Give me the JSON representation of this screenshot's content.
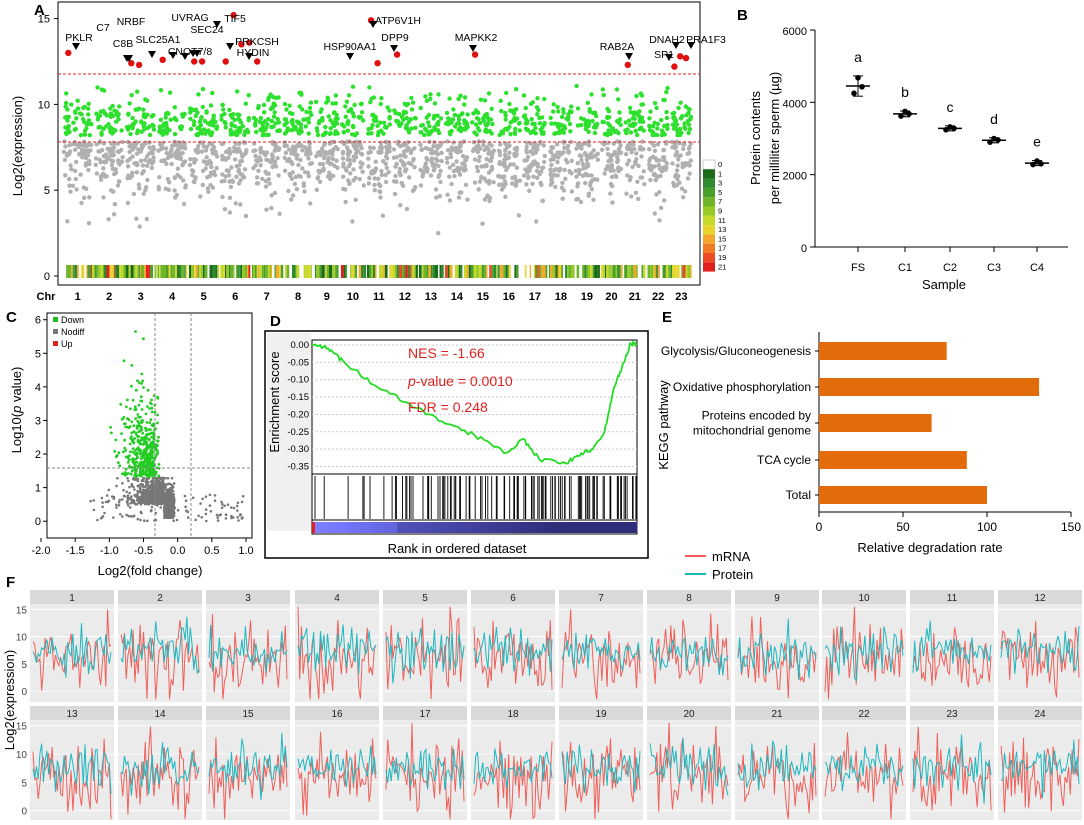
{
  "panels": {
    "A": {
      "letter": "A"
    },
    "B": {
      "letter": "B"
    },
    "C": {
      "letter": "C"
    },
    "D": {
      "letter": "D"
    },
    "E": {
      "letter": "E"
    },
    "F": {
      "letter": "F"
    }
  },
  "chart_data": [
    {
      "id": "A",
      "type": "scatter",
      "title": "",
      "ylabel": "Log2(expression)",
      "xlabel": "Chr",
      "ylim": [
        0,
        15.5
      ],
      "yticks": [
        0,
        5,
        10,
        15
      ],
      "categories": [
        "1",
        "2",
        "3",
        "4",
        "5",
        "6",
        "7",
        "8",
        "9",
        "10",
        "11",
        "12",
        "13",
        "14",
        "15",
        "16",
        "17",
        "18",
        "19",
        "20",
        "21",
        "22",
        "23"
      ],
      "thresholds": [
        12,
        8
      ],
      "gene_labels": [
        "PKLR",
        "C7",
        "C8B",
        "NRBF",
        "SLC25A1",
        "UVRAG",
        "SEC24",
        "TIF5",
        "CNOT7/8",
        "PRKCSH",
        "HYDIN",
        "ATP6V1H",
        "HSP90AA1",
        "DPP9",
        "MAPKK2",
        "RAB2A",
        "DNAH2",
        "SP1",
        "PRA1F3"
      ],
      "highlight_points": [
        {
          "gene": "PKLR",
          "chr": 1,
          "y": 13
        },
        {
          "gene": "C7",
          "chr": 3,
          "y": 12.4
        },
        {
          "gene": "C8B",
          "chr": 3,
          "y": 12.3
        },
        {
          "gene": "SLC25A1",
          "chr": 4,
          "y": 12.6
        },
        {
          "gene": "CNOT7/8",
          "chr": 5,
          "y": 12.5
        },
        {
          "gene": "NRBF",
          "chr": 5,
          "y": 12.5
        },
        {
          "gene": "UVRAG",
          "chr": 6,
          "y": 12.5
        },
        {
          "gene": "SEC24",
          "chr": 6,
          "y": 15.2
        },
        {
          "gene": "TIF5",
          "chr": 6,
          "y": 13.5
        },
        {
          "gene": "PRKCSH",
          "chr": 6,
          "y": 13.6
        },
        {
          "gene": "HYDIN",
          "chr": 7,
          "y": 12.5
        },
        {
          "gene": "ATP6V1H",
          "chr": 11,
          "y": 14.9
        },
        {
          "gene": "HSP90AA1",
          "chr": 11,
          "y": 12.4
        },
        {
          "gene": "DPP9",
          "chr": 12,
          "y": 12.9
        },
        {
          "gene": "MAPKK2",
          "chr": 15,
          "y": 12.9
        },
        {
          "gene": "RAB2A",
          "chr": 21,
          "y": 12.3
        },
        {
          "gene": "SP1",
          "chr": 23,
          "y": 12.2
        },
        {
          "gene": "DNAH2",
          "chr": 23,
          "y": 12.8
        },
        {
          "gene": "PRA1F3",
          "chr": 23,
          "y": 12.7
        }
      ],
      "heat_legend": [
        "0",
        "1",
        "3",
        "5",
        "7",
        "9",
        "11",
        "13",
        "15",
        "17",
        "19",
        "21"
      ],
      "heat_colors": [
        "#ffffff",
        "#1a6b1a",
        "#2e8b2e",
        "#4a9f2a",
        "#6fb52a",
        "#97c926",
        "#c4d92a",
        "#e8d52c",
        "#f4a72a",
        "#f07a26",
        "#ea4a24",
        "#e0201f"
      ]
    },
    {
      "id": "B",
      "type": "scatter",
      "xlabel": "Sample",
      "ylabel": "Protein contents per milliliter sperm (µg)",
      "ylabel_lines": [
        "Protein contents",
        "per milliliter sperm (µg)"
      ],
      "ylim": [
        0,
        6000
      ],
      "yticks": [
        0,
        2000,
        4000,
        6000
      ],
      "categories": [
        "FS",
        "C1",
        "C2",
        "C3",
        "C4"
      ],
      "means": [
        4450,
        3680,
        3280,
        2950,
        2320
      ],
      "sd": [
        280,
        80,
        70,
        70,
        70
      ],
      "points": [
        [
          4680,
          4250,
          4430
        ],
        [
          3750,
          3620,
          3680
        ],
        [
          3320,
          3240,
          3280
        ],
        [
          3000,
          2900,
          2960
        ],
        [
          2380,
          2280,
          2300
        ]
      ],
      "letters": [
        "a",
        "b",
        "c",
        "d",
        "e"
      ]
    },
    {
      "id": "C",
      "type": "scatter",
      "xlabel": "Log2(fold change)",
      "ylabel": "Log10(p value)",
      "ylabel_parts": [
        "Log10(",
        "p",
        " value)"
      ],
      "xlim": [
        -2.0,
        1.0
      ],
      "ylim": [
        -0.5,
        6.2
      ],
      "xticks": [
        "-2.0",
        "-1.5",
        "-1.0",
        "-0.5",
        "0.0",
        "0.5",
        "1.0"
      ],
      "yticks": [
        "0",
        "1",
        "2",
        "3",
        "4",
        "5",
        "6"
      ],
      "legend": [
        {
          "name": "Down",
          "color": "#22bb22"
        },
        {
          "name": "Nodiff",
          "color": "#777777"
        },
        {
          "name": "Up",
          "color": "#dd2222"
        }
      ],
      "hline": 1.3,
      "vlines": [
        -0.26,
        0.26
      ]
    },
    {
      "id": "D",
      "type": "line",
      "ylabel": "Enrichment score",
      "xlabel": "Rank in ordered dataset",
      "ylim": [
        -0.36,
        0.01
      ],
      "yticks": [
        "0.00",
        "-0.05",
        "-0.10",
        "-0.15",
        "-0.20",
        "-0.25",
        "-0.30",
        "-0.35"
      ],
      "nes": "NES = -1.66",
      "pvalue_label": "p",
      "pvalue_rest": "-value = 0.0010",
      "fdr": "FDR = 0.248"
    },
    {
      "id": "E",
      "type": "bar",
      "ylabel": "KEGG pathway",
      "xlabel": "Relative degradation rate",
      "xlim": [
        0,
        150
      ],
      "xticks": [
        0,
        50,
        100,
        150
      ],
      "categories": [
        "Glycolysis/Gluconeogenesis",
        "Oxidative phosphorylation",
        "Proteins encoded by mitochondrial genome",
        "TCA cycle",
        "Total"
      ],
      "category_lines": [
        [
          "Glycolysis/Gluconeogenesis"
        ],
        [
          "Oxidative phosphorylation"
        ],
        [
          "Proteins encoded by",
          "mitochondrial genome"
        ],
        [
          "TCA cycle"
        ],
        [
          "Total"
        ]
      ],
      "values": [
        76,
        131,
        67,
        88,
        100
      ],
      "color": "#e36c0a"
    },
    {
      "id": "F",
      "type": "line",
      "ylabel": "Log2(expression)",
      "legend": [
        {
          "name": "mRNA",
          "color": "#f0605a"
        },
        {
          "name": "Protein",
          "color": "#1fb8c0"
        }
      ],
      "facets": [
        "1",
        "2",
        "3",
        "4",
        "5",
        "6",
        "7",
        "8",
        "9",
        "10",
        "11",
        "12",
        "13",
        "14",
        "15",
        "16",
        "17",
        "18",
        "19",
        "20",
        "21",
        "22",
        "23",
        "24"
      ],
      "yticks": [
        "0",
        "5",
        "10",
        "15"
      ],
      "ylim": [
        -2,
        16
      ]
    }
  ]
}
